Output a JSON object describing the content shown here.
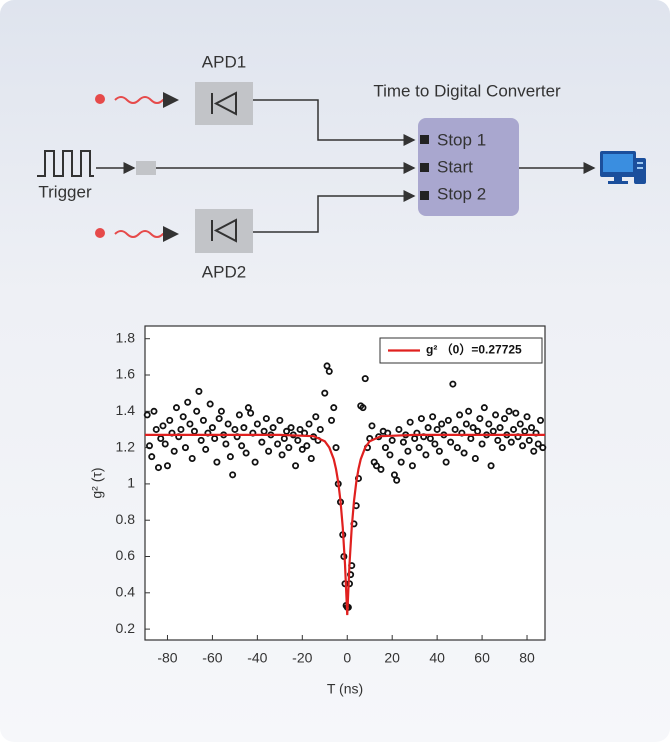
{
  "diagram": {
    "apd1": "APD1",
    "apd2": "APD2",
    "trigger": "Trigger",
    "converter": "Time to Digital Converter",
    "ports": [
      "Stop 1",
      "Start",
      "Stop 2"
    ]
  },
  "chart_data": {
    "type": "scatter",
    "x_label": "T (ns)",
    "y_label": "g² (τ)",
    "xlim": [
      -90,
      88
    ],
    "ylim": [
      0.14,
      1.87
    ],
    "xticks": [
      -80,
      -60,
      -40,
      -20,
      0,
      20,
      40,
      60,
      80
    ],
    "yticks": [
      0.2,
      0.4,
      0.6,
      0.8,
      1,
      1.2,
      1.4,
      1.6,
      1.8
    ],
    "legend": "upper right",
    "series": [
      {
        "color": "#111111",
        "x": [
          -89,
          -88,
          -87,
          -86,
          -85,
          -84,
          -83,
          -82,
          -81,
          -80,
          -79,
          -78,
          -77,
          -76,
          -75,
          -74,
          -73,
          -72,
          -71,
          -70,
          -69,
          -68,
          -67,
          -66,
          -65,
          -64,
          -63,
          -62,
          -61,
          -60,
          -59,
          -58,
          -57,
          -56,
          -55,
          -54,
          -53,
          -52,
          -51,
          -50,
          -49,
          -48,
          -47,
          -46,
          -45,
          -44,
          -43,
          -42,
          -41,
          -40,
          -38,
          -37,
          -36,
          -35,
          -34,
          -33,
          -31,
          -30,
          -29,
          -28,
          -27,
          -26,
          -25,
          -24,
          -23,
          -22,
          -21,
          -20,
          -19,
          -18,
          -17,
          -16,
          -15,
          -14,
          -13,
          -12,
          -10,
          -9,
          -8,
          -7,
          -6,
          -5,
          -4,
          -3,
          -2,
          -1.5,
          -1,
          -0.5,
          0,
          0.5,
          1,
          1.5,
          2,
          3,
          4,
          5,
          6,
          7,
          8,
          9,
          10,
          11,
          12,
          13,
          14,
          15,
          16,
          17,
          18,
          19,
          20,
          21,
          22,
          23,
          24,
          25,
          26,
          27,
          28,
          29,
          30,
          31,
          32,
          33,
          34,
          35,
          36,
          37,
          38,
          39,
          40,
          41,
          42,
          43,
          44,
          45,
          46,
          47,
          48,
          49,
          50,
          51,
          52,
          53,
          54,
          55,
          56,
          57,
          58,
          59,
          60,
          61,
          62,
          63,
          64,
          65,
          66,
          67,
          68,
          69,
          70,
          71,
          72,
          73,
          74,
          75,
          76,
          77,
          78,
          79,
          80,
          81,
          82,
          83,
          84,
          85,
          86,
          87
        ],
        "values": [
          1.38,
          1.21,
          1.15,
          1.4,
          1.3,
          1.09,
          1.25,
          1.32,
          1.22,
          1.1,
          1.35,
          1.28,
          1.18,
          1.42,
          1.26,
          1.3,
          1.37,
          1.2,
          1.45,
          1.33,
          1.14,
          1.29,
          1.4,
          1.51,
          1.24,
          1.35,
          1.19,
          1.28,
          1.44,
          1.31,
          1.25,
          1.12,
          1.36,
          1.4,
          1.27,
          1.22,
          1.33,
          1.15,
          1.05,
          1.3,
          1.26,
          1.38,
          1.21,
          1.31,
          1.17,
          1.42,
          1.39,
          1.28,
          1.12,
          1.33,
          1.23,
          1.29,
          1.36,
          1.18,
          1.27,
          1.31,
          1.22,
          1.35,
          1.16,
          1.25,
          1.29,
          1.2,
          1.31,
          1.27,
          1.1,
          1.24,
          1.3,
          1.19,
          1.28,
          1.21,
          1.33,
          1.14,
          1.26,
          1.37,
          1.24,
          1.3,
          1.5,
          1.65,
          1.62,
          1.35,
          1.42,
          1.2,
          1.0,
          0.9,
          0.72,
          0.6,
          0.45,
          0.33,
          0.32,
          0.32,
          0.45,
          0.5,
          0.55,
          0.78,
          0.88,
          1.03,
          1.43,
          1.42,
          1.58,
          1.2,
          1.25,
          1.32,
          1.12,
          1.1,
          1.26,
          1.08,
          1.29,
          1.2,
          1.28,
          1.16,
          1.24,
          1.05,
          1.02,
          1.3,
          1.12,
          1.23,
          1.27,
          1.18,
          1.34,
          1.1,
          1.25,
          1.28,
          1.2,
          1.36,
          1.26,
          1.16,
          1.31,
          1.25,
          1.37,
          1.22,
          1.3,
          1.18,
          1.33,
          1.27,
          1.12,
          1.35,
          1.23,
          1.55,
          1.3,
          1.2,
          1.38,
          1.28,
          1.17,
          1.33,
          1.4,
          1.25,
          1.31,
          1.14,
          1.29,
          1.36,
          1.22,
          1.42,
          1.27,
          1.33,
          1.1,
          1.29,
          1.38,
          1.24,
          1.31,
          1.2,
          1.36,
          1.27,
          1.4,
          1.23,
          1.3,
          1.39,
          1.26,
          1.33,
          1.21,
          1.29,
          1.37,
          1.24,
          1.31,
          1.18,
          1.28,
          1.22,
          1.35,
          1.2
        ]
      },
      {
        "name": "g² （0）=0.27725",
        "type": "line",
        "color": "#e0201f",
        "x": [
          -90,
          -30,
          -15,
          -10,
          -8,
          -6,
          -5,
          -4,
          -3,
          -2,
          -1,
          0,
          1,
          2,
          3,
          4,
          5,
          6,
          8,
          10,
          15,
          30,
          88
        ],
        "values": [
          1.27,
          1.27,
          1.263,
          1.235,
          1.201,
          1.136,
          1.082,
          1.008,
          0.905,
          0.76,
          0.558,
          0.277,
          0.558,
          0.76,
          0.905,
          1.008,
          1.082,
          1.136,
          1.201,
          1.235,
          1.263,
          1.27,
          1.27
        ]
      }
    ]
  }
}
